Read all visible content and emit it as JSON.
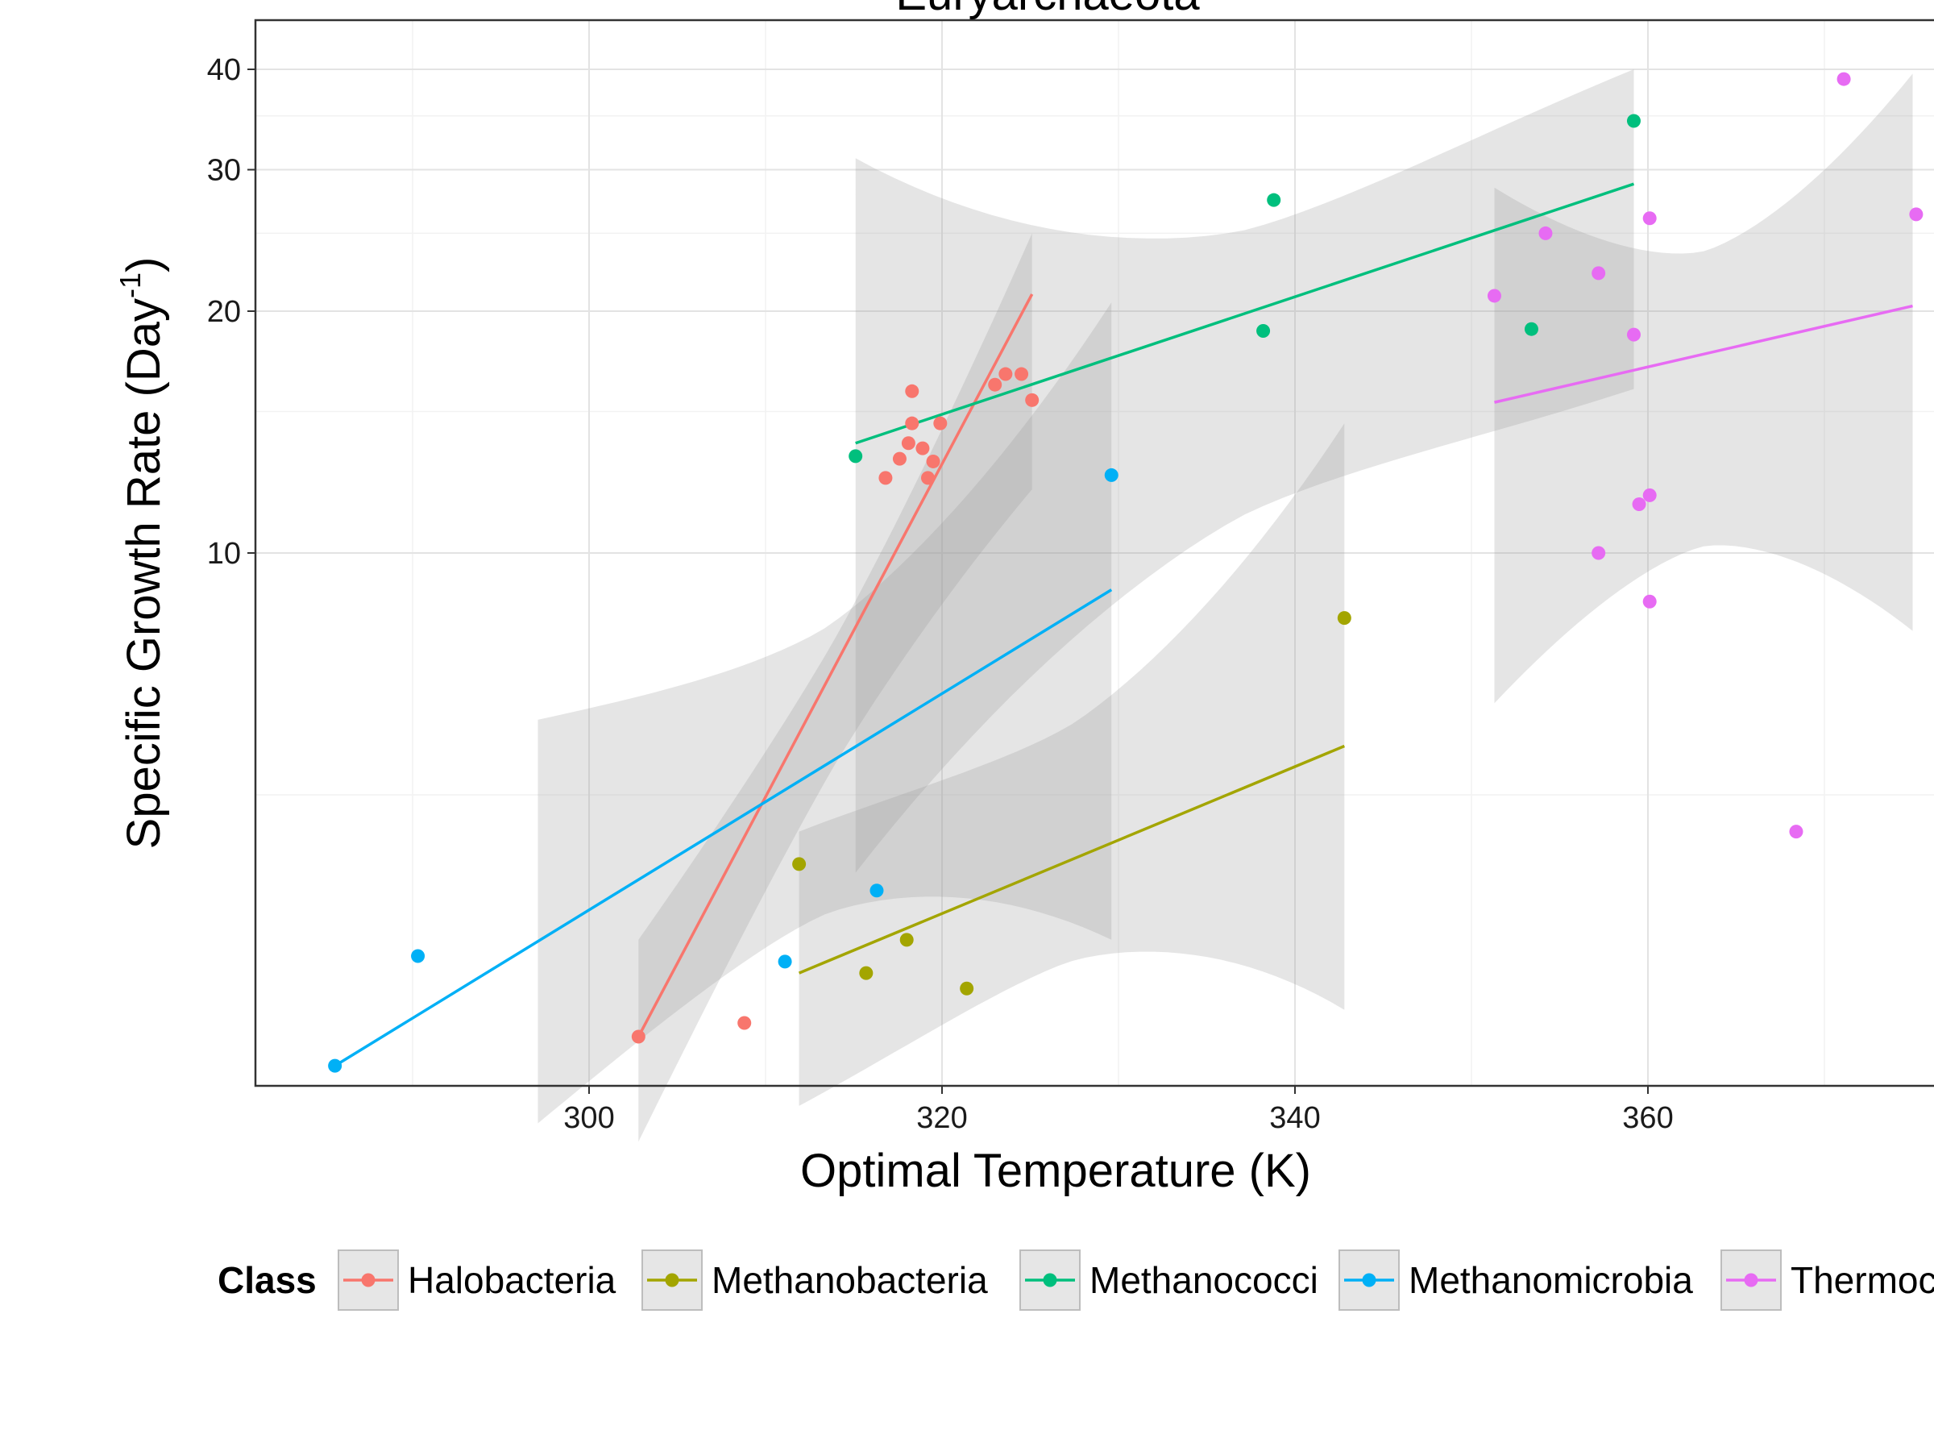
{
  "chart_data": {
    "type": "scatter",
    "title": "Euryarchaeota",
    "xlabel": "Optimal Temperature (K)",
    "ylabel": "Specific Growth Rate (Day",
    "ylabel_superscript": "-1",
    "ylabel_suffix": ")",
    "xlim": [
      283.5,
      375.3
    ],
    "ylim": [
      1.77,
      42.5
    ],
    "y_scale": "log",
    "x_ticks": [
      300,
      320,
      340,
      360
    ],
    "x_tick_labels": [
      "300",
      "320",
      "340",
      "360"
    ],
    "y_ticks": [
      10,
      20,
      30,
      40
    ],
    "y_tick_labels": [
      "10",
      "20",
      "30",
      "40"
    ],
    "grid": true,
    "legend_position": "bottom",
    "legend_title": "Class",
    "series": [
      {
        "name": "Halobacteria",
        "color": "#F8766D",
        "points": [
          [
            302.8,
            2.5
          ],
          [
            308.8,
            2.6
          ],
          [
            316.8,
            12.4
          ],
          [
            317.6,
            13.1
          ],
          [
            318.1,
            13.7
          ],
          [
            318.3,
            15.9
          ],
          [
            318.3,
            14.5
          ],
          [
            318.9,
            13.5
          ],
          [
            319.2,
            12.4
          ],
          [
            319.5,
            13.0
          ],
          [
            319.9,
            14.5
          ],
          [
            323.0,
            16.2
          ],
          [
            323.6,
            16.7
          ],
          [
            324.5,
            16.7
          ],
          [
            325.1,
            15.5
          ]
        ],
        "fit": [
          [
            302.8,
            2.5
          ],
          [
            325.1,
            21.0
          ]
        ],
        "band": {
          "x": [
            302.8,
            325.1
          ],
          "lower": [
            1.85,
            12.0
          ],
          "upper": [
            3.3,
            25.0
          ]
        }
      },
      {
        "name": "Methanobacteria",
        "color": "#A3A500",
        "points": [
          [
            311.9,
            4.1
          ],
          [
            315.7,
            3.0
          ],
          [
            318.0,
            3.3
          ],
          [
            321.4,
            2.87
          ],
          [
            342.8,
            8.3
          ]
        ],
        "fit": [
          [
            311.9,
            3.0
          ],
          [
            342.8,
            5.75
          ]
        ],
        "band": {
          "x": [
            311.9,
            342.8
          ],
          "lower": [
            2.05,
            2.7
          ],
          "upper": [
            4.5,
            14.5
          ]
        }
      },
      {
        "name": "Methanococci",
        "color": "#00BF7D",
        "points": [
          [
            315.1,
            13.2
          ],
          [
            338.2,
            18.9
          ],
          [
            338.8,
            27.5
          ],
          [
            353.4,
            19.0
          ],
          [
            359.2,
            34.5
          ]
        ],
        "fit": [
          [
            315.1,
            13.7
          ],
          [
            359.2,
            28.8
          ]
        ],
        "band": {
          "x": [
            315.1,
            359.2
          ],
          "lower": [
            4.0,
            16.0
          ],
          "upper": [
            31.0,
            40.0
          ]
        }
      },
      {
        "name": "Methanomicrobia",
        "color": "#00B0F6",
        "points": [
          [
            285.6,
            2.3
          ],
          [
            290.3,
            3.15
          ],
          [
            311.1,
            3.1
          ],
          [
            316.3,
            3.8
          ],
          [
            329.6,
            12.5
          ]
        ],
        "fit": [
          [
            285.6,
            2.3
          ],
          [
            329.6,
            9.0
          ]
        ],
        "band": {
          "x": [
            297.1,
            329.6
          ],
          "lower": [
            1.95,
            3.3
          ],
          "upper": [
            6.2,
            20.5
          ]
        }
      },
      {
        "name": "Thermococci",
        "color": "#E76BF3",
        "points": [
          [
            351.3,
            20.9
          ],
          [
            354.2,
            25.0
          ],
          [
            357.2,
            22.3
          ],
          [
            357.2,
            10.0
          ],
          [
            359.2,
            18.7
          ],
          [
            359.5,
            11.5
          ],
          [
            360.1,
            11.8
          ],
          [
            360.1,
            26.1
          ],
          [
            360.1,
            8.7
          ],
          [
            368.4,
            4.5
          ],
          [
            371.1,
            38.9
          ],
          [
            375.2,
            26.4
          ]
        ],
        "fit": [
          [
            351.3,
            15.4
          ],
          [
            375.0,
            20.3
          ]
        ],
        "band": {
          "x": [
            351.3,
            375.0
          ],
          "lower": [
            6.5,
            8.0
          ],
          "upper": [
            28.5,
            39.5
          ]
        }
      }
    ]
  }
}
